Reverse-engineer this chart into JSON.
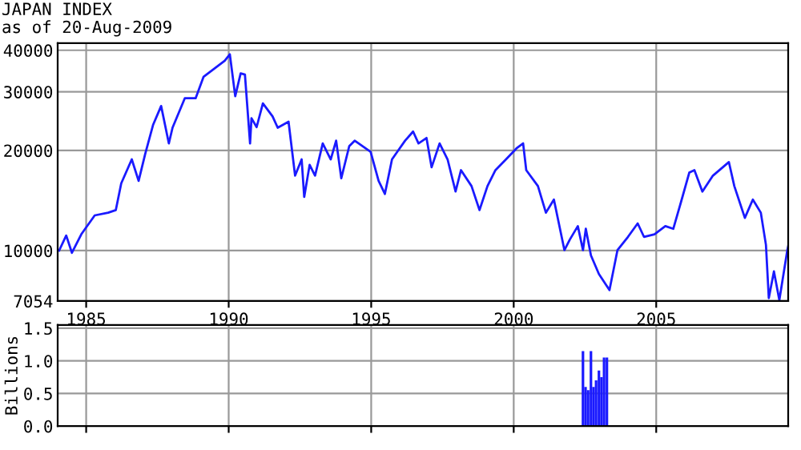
{
  "chart_data": [
    {
      "type": "line",
      "title": "JAPAN INDEX",
      "subtitle": "as of 20-Aug-2009",
      "log": "y",
      "grid": true,
      "color": "#1a1aff",
      "marker": "none",
      "line_style": "solid",
      "x": [
        1984.05,
        1984.3,
        1984.5,
        1984.83,
        1985.3,
        1985.77,
        1986.04,
        1986.23,
        1986.6,
        1986.84,
        1987.07,
        1987.35,
        1987.63,
        1987.9,
        1988.03,
        1988.46,
        1988.84,
        1989.12,
        1989.49,
        1989.86,
        1990.04,
        1990.23,
        1990.42,
        1990.57,
        1990.75,
        1990.8,
        1990.98,
        1991.2,
        1991.54,
        1991.72,
        1992.1,
        1992.33,
        1992.56,
        1992.65,
        1992.84,
        1993.03,
        1993.3,
        1993.58,
        1993.77,
        1993.95,
        1994.23,
        1994.42,
        1994.98,
        1995.26,
        1995.48,
        1995.73,
        1996.0,
        1996.19,
        1996.47,
        1996.66,
        1996.94,
        1997.12,
        1997.4,
        1997.68,
        1997.96,
        1998.15,
        1998.52,
        1998.8,
        1999.08,
        1999.36,
        1999.73,
        2000.1,
        2000.33,
        2000.44,
        2000.85,
        2001.13,
        2001.41,
        2001.78,
        2001.97,
        2002.25,
        2002.43,
        2002.53,
        2002.71,
        2002.99,
        2003.36,
        2003.64,
        2004.01,
        2004.35,
        2004.57,
        2004.94,
        2005.32,
        2005.6,
        2005.87,
        2006.16,
        2006.34,
        2006.62,
        2006.99,
        2007.55,
        2007.74,
        2008.11,
        2008.39,
        2008.67,
        2008.85,
        2008.95,
        2009.13,
        2009.32,
        2009.6,
        2009.63
      ],
      "values": [
        10000,
        11100,
        9850,
        11200,
        12760,
        13000,
        13240,
        15920,
        18800,
        16200,
        19500,
        23900,
        27200,
        21000,
        23400,
        28700,
        28700,
        33300,
        35200,
        37200,
        38900,
        29100,
        34100,
        33800,
        21000,
        25000,
        23500,
        27700,
        25300,
        23400,
        24400,
        16800,
        18800,
        14500,
        18100,
        16800,
        21000,
        18800,
        21400,
        16500,
        20600,
        21400,
        19800,
        16200,
        14800,
        18800,
        20300,
        21400,
        22800,
        21000,
        21800,
        17800,
        21000,
        18800,
        15050,
        17450,
        15630,
        13240,
        15630,
        17450,
        18800,
        20300,
        21000,
        17450,
        15630,
        13000,
        14240,
        10030,
        10800,
        11850,
        10030,
        11630,
        9670,
        8500,
        7610,
        10030,
        11000,
        12070,
        11000,
        11200,
        11850,
        11630,
        14000,
        17150,
        17450,
        15050,
        16800,
        18450,
        15630,
        12540,
        14240,
        13000,
        10400,
        7200,
        8660,
        7100,
        10030,
        10300
      ],
      "xlim": [
        1984.0,
        2009.63
      ],
      "xticks": [
        1985,
        1990,
        1995,
        2000,
        2005
      ],
      "ylim": [
        7054,
        42000
      ],
      "yticks": [
        7054,
        10000,
        20000,
        30000,
        40000
      ]
    },
    {
      "type": "bar",
      "ylabel": "Billions",
      "grid": true,
      "color": "#1a1aff",
      "tick_labels": "y",
      "x": [
        2002.43,
        2002.52,
        2002.61,
        2002.71,
        2002.8,
        2002.89,
        2002.99,
        2003.08,
        2003.17,
        2003.27
      ],
      "values": [
        1.15,
        0.6,
        0.55,
        1.15,
        0.6,
        0.7,
        0.85,
        0.75,
        1.05,
        1.05
      ],
      "xlim": [
        1984.0,
        2009.63
      ],
      "xticks": [
        1985,
        1990,
        1995,
        2000,
        2005
      ],
      "ylim": [
        0,
        1.55
      ],
      "yticks": [
        {
          "value": 0,
          "label": "0.0"
        },
        {
          "value": 0.5,
          "label": "0.5"
        },
        {
          "value": 1,
          "label": "1.0"
        },
        {
          "value": 1.5,
          "label": "1.5"
        }
      ]
    }
  ]
}
